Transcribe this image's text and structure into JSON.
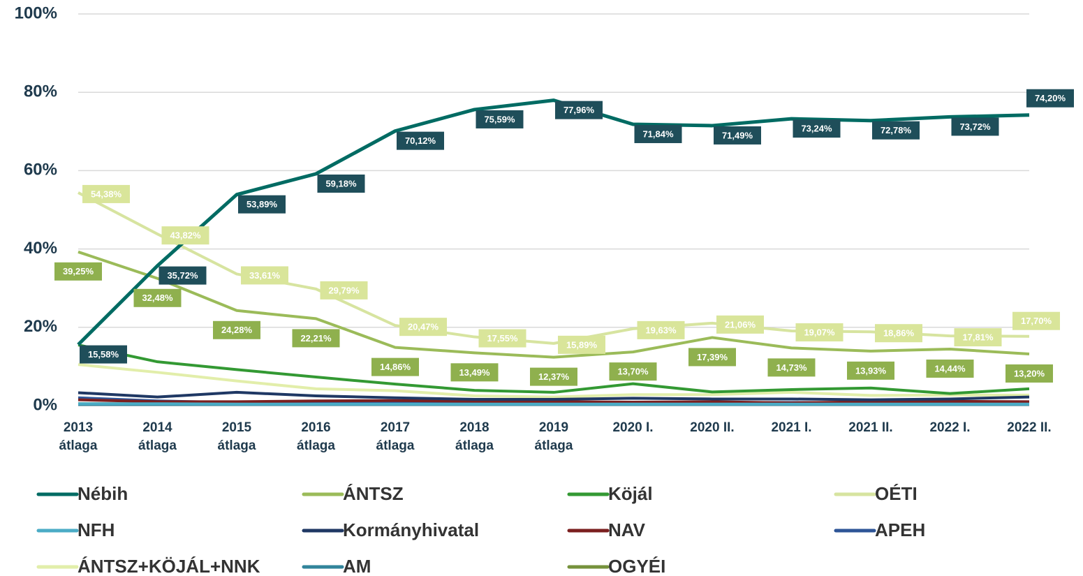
{
  "chart_data": {
    "type": "line",
    "categories": [
      "2013 átlaga",
      "2014 átlaga",
      "2015 átlaga",
      "2016 átlaga",
      "2017 átlaga",
      "2018 átlaga",
      "2019 átlaga",
      "2020 I.",
      "2020 II.",
      "2021 I.",
      "2021 II.",
      "2022 I.",
      "2022 II."
    ],
    "ylim": [
      0,
      100
    ],
    "yticks": [
      {
        "value": 0,
        "label": "0%"
      },
      {
        "value": 20,
        "label": "20%"
      },
      {
        "value": 40,
        "label": "40%"
      },
      {
        "value": 60,
        "label": "60%"
      },
      {
        "value": 80,
        "label": "80%"
      },
      {
        "value": 100,
        "label": "100%"
      }
    ],
    "grid": true,
    "legend": "bottom",
    "series": [
      {
        "name": "Nébih",
        "color": "#006b63",
        "label_color": "#1f4e5a",
        "values": [
          15.58,
          35.72,
          53.89,
          59.18,
          70.12,
          75.59,
          77.96,
          71.84,
          71.49,
          73.24,
          72.78,
          73.72,
          74.2
        ],
        "value_labels": [
          "15,58%",
          "35,72%",
          "53,89%",
          "59,18%",
          "70,12%",
          "75,59%",
          "77,96%",
          "71,84%",
          "71,49%",
          "73,24%",
          "72,78%",
          "73,72%",
          "74,20%"
        ]
      },
      {
        "name": "ÁNTSZ",
        "color": "#9bbb59",
        "label_color": "#8fb04e",
        "values": [
          39.25,
          32.48,
          24.28,
          22.21,
          14.86,
          13.49,
          12.37,
          13.7,
          17.39,
          14.73,
          13.93,
          14.44,
          13.2
        ],
        "value_labels": [
          "39,25%",
          "32,48%",
          "24,28%",
          "22,21%",
          "14,86%",
          "13,49%",
          "12,37%",
          "13,70%",
          "17,39%",
          "14,73%",
          "13,93%",
          "14,44%",
          "13,20%"
        ]
      },
      {
        "name": "Köjál",
        "color": "#339933",
        "values": [
          15.5,
          11.2,
          9.2,
          7.3,
          5.5,
          3.9,
          3.4,
          5.6,
          3.5,
          4.1,
          4.5,
          3.1,
          4.3
        ]
      },
      {
        "name": "OÉTI",
        "color": "#d7e4a0",
        "label_color": "#d9e59a",
        "values": [
          54.38,
          43.82,
          33.61,
          29.79,
          20.47,
          17.55,
          15.89,
          19.63,
          21.06,
          19.07,
          18.86,
          17.81,
          17.7
        ],
        "value_labels": [
          "54,38%",
          "43,82%",
          "33,61%",
          "29,79%",
          "20,47%",
          "17,55%",
          "15,89%",
          "19,63%",
          "21,06%",
          "19,07%",
          "18,86%",
          "17,81%",
          "17,70%"
        ]
      },
      {
        "name": "NFH",
        "color": "#4bacc6",
        "values": [
          0.5,
          0.5,
          0.4,
          0.4,
          0.4,
          0.4,
          0.4,
          0.4,
          0.4,
          0.4,
          0.4,
          0.4,
          0.4
        ]
      },
      {
        "name": "Kormányhivatal",
        "color": "#1f3864",
        "values": [
          3.3,
          2.2,
          3.4,
          2.5,
          2.0,
          1.6,
          1.6,
          1.9,
          1.7,
          1.7,
          1.5,
          1.7,
          2.2
        ]
      },
      {
        "name": "NAV",
        "color": "#7b1f1f",
        "values": [
          1.5,
          1.0,
          1.0,
          1.2,
          1.3,
          1.1,
          1.0,
          0.9,
          1.0,
          0.7,
          1.0,
          1.1,
          1.0
        ]
      },
      {
        "name": "APEH",
        "color": "#2e5597",
        "values": [
          2.0,
          1.2,
          0.8,
          0.9,
          0.9,
          0.8,
          0.8,
          0.8,
          0.8,
          0.8,
          0.8,
          0.8,
          0.8
        ]
      },
      {
        "name": "ÁNTSZ+KÖJÁL+NNK",
        "color": "#e2eeaa",
        "values": [
          10.5,
          8.5,
          6.3,
          4.3,
          3.8,
          2.5,
          2.2,
          2.8,
          2.8,
          3.4,
          2.6,
          2.7,
          2.7
        ]
      },
      {
        "name": "AM",
        "color": "#31849b",
        "values": [
          0.3,
          0.3,
          0.3,
          0.3,
          0.3,
          0.3,
          0.3,
          0.3,
          0.3,
          0.3,
          0.3,
          0.3,
          0.3
        ]
      },
      {
        "name": "OGYÉI",
        "color": "#76923c",
        "values": [
          0.5,
          0.5,
          0.6,
          null,
          null,
          null,
          null,
          null,
          null,
          null,
          null,
          null,
          null
        ]
      }
    ]
  }
}
